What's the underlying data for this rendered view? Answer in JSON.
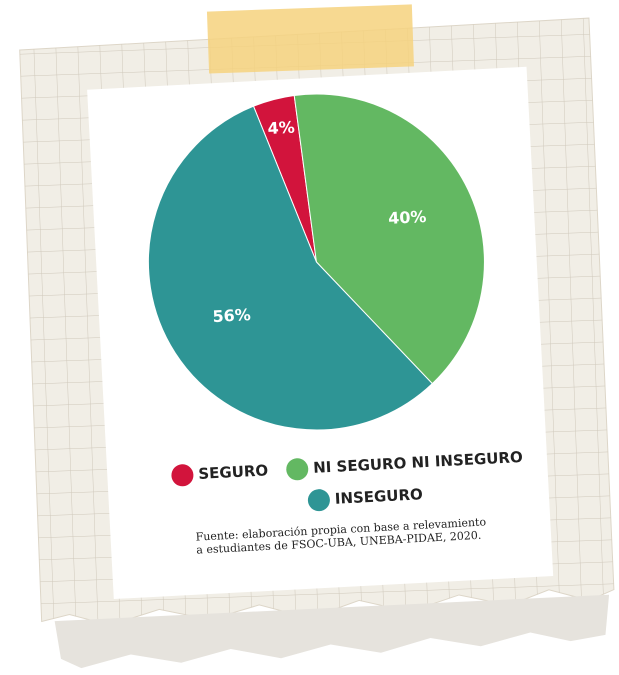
{
  "chart_data": {
    "type": "pie",
    "categories": [
      "SEGURO",
      "NI SEGURO NI INSEGURO",
      "INSEGURO"
    ],
    "values": [
      4,
      40,
      56
    ],
    "value_labels": [
      "4%",
      "40%",
      "56%"
    ],
    "colors": [
      "#d2143c",
      "#63b862",
      "#2e9595"
    ],
    "source": [
      "Fuente: elaboración propia con base a relevamiento",
      "a estudiantes de FSOC-UBA, UNEBA-PIDAE, 2020."
    ]
  }
}
